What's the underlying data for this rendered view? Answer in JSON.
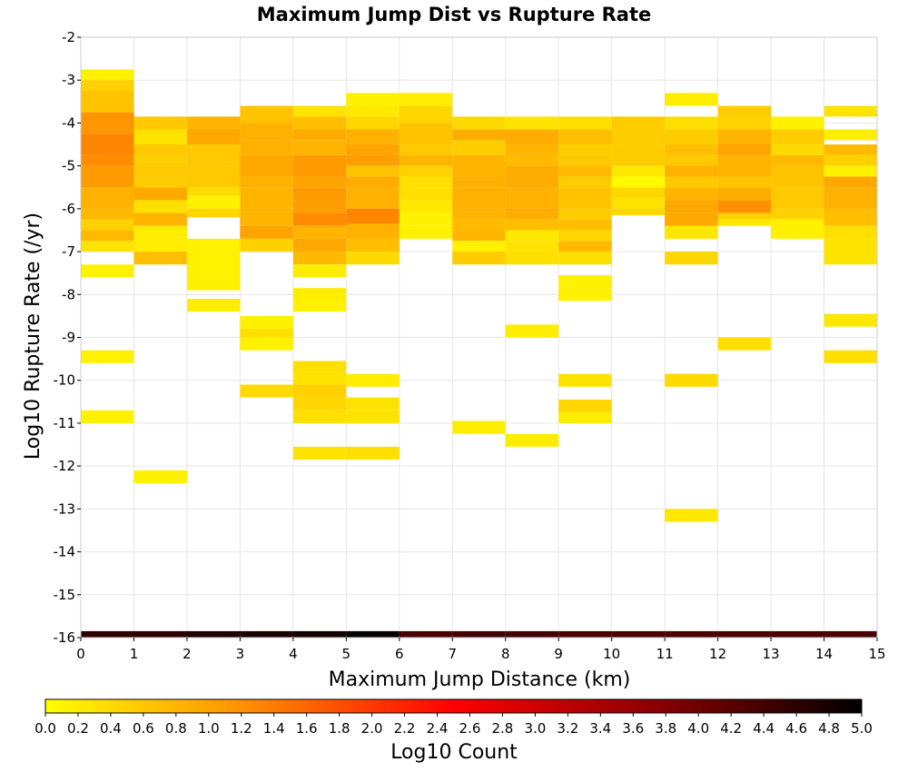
{
  "chart_data": {
    "type": "heatmap",
    "title": "Maximum Jump Dist vs Rupture Rate",
    "xlabel": "Maximum Jump Distance (km)",
    "ylabel": "Log10 Rupture Rate (/yr)",
    "xlim": [
      0,
      15
    ],
    "ylim": [
      -16,
      -2
    ],
    "x_bin_width": 1,
    "y_bin_height": 0.25,
    "xticks": [
      "0",
      "1",
      "2",
      "3",
      "4",
      "5",
      "6",
      "7",
      "8",
      "9",
      "10",
      "11",
      "12",
      "13",
      "14",
      "15"
    ],
    "yticks": [
      "-2",
      "-3",
      "-4",
      "-5",
      "-6",
      "-7",
      "-8",
      "-9",
      "-10",
      "-11",
      "-12",
      "-13",
      "-14",
      "-15",
      "-16"
    ],
    "grid": true,
    "colorbar": {
      "label": "Log10 Count",
      "range": [
        0,
        5
      ],
      "ticks": [
        "0.0",
        "0.2",
        "0.4",
        "0.6",
        "0.8",
        "1.0",
        "1.2",
        "1.4",
        "1.6",
        "1.8",
        "2.0",
        "2.2",
        "2.4",
        "2.6",
        "2.8",
        "3.0",
        "3.2",
        "3.4",
        "3.6",
        "3.8",
        "4.0",
        "4.2",
        "4.4",
        "4.6",
        "4.8",
        "5.0"
      ],
      "stops": [
        "#ffff00",
        "#ff8c00",
        "#ff0000",
        "#8b0000",
        "#000000"
      ]
    },
    "cells_note": "each row: [x_bin_start, y_bin_bottom, y_bin_top, log10_count]",
    "cells": [
      [
        0,
        -3.0,
        -2.75,
        0.15
      ],
      [
        0,
        -3.25,
        -3.0,
        0.5
      ],
      [
        0,
        -3.75,
        -3.25,
        0.65
      ],
      [
        0,
        -4.25,
        -3.75,
        1.15
      ],
      [
        0,
        -4.75,
        -4.25,
        1.3
      ],
      [
        0,
        -5.0,
        -4.75,
        1.25
      ],
      [
        0,
        -5.5,
        -5.0,
        1.1
      ],
      [
        0,
        -6.0,
        -5.5,
        0.85
      ],
      [
        0,
        -6.25,
        -6.0,
        0.75
      ],
      [
        0,
        -6.5,
        -6.25,
        0.5
      ],
      [
        0,
        -6.75,
        -6.5,
        0.75
      ],
      [
        0,
        -7.0,
        -6.75,
        0.3
      ],
      [
        0,
        -7.6,
        -7.3,
        0.15
      ],
      [
        0,
        -9.6,
        -9.3,
        0.15
      ],
      [
        0,
        -11.0,
        -10.7,
        0.15
      ],
      [
        1,
        -4.15,
        -3.85,
        0.6
      ],
      [
        1,
        -4.5,
        -4.15,
        0.3
      ],
      [
        1,
        -4.75,
        -4.5,
        0.6
      ],
      [
        1,
        -5.0,
        -4.75,
        0.55
      ],
      [
        1,
        -5.25,
        -5.0,
        0.6
      ],
      [
        1,
        -5.5,
        -5.25,
        0.55
      ],
      [
        1,
        -5.8,
        -5.5,
        0.95
      ],
      [
        1,
        -6.1,
        -5.8,
        0.35
      ],
      [
        1,
        -6.4,
        -6.1,
        0.8
      ],
      [
        1,
        -6.7,
        -6.4,
        0.2
      ],
      [
        1,
        -7.0,
        -6.7,
        0.2
      ],
      [
        1,
        -7.3,
        -7.0,
        0.7
      ],
      [
        1,
        -12.4,
        -12.1,
        0.15
      ],
      [
        2,
        -4.15,
        -3.85,
        0.8
      ],
      [
        2,
        -4.5,
        -4.15,
        0.95
      ],
      [
        2,
        -5.0,
        -4.5,
        0.6
      ],
      [
        2,
        -5.5,
        -5.0,
        0.6
      ],
      [
        2,
        -5.7,
        -5.5,
        0.4
      ],
      [
        2,
        -6.0,
        -5.7,
        0.15
      ],
      [
        2,
        -6.2,
        -6.0,
        0.45
      ],
      [
        2,
        -7.0,
        -6.7,
        0.15
      ],
      [
        2,
        -7.6,
        -7.0,
        0.15
      ],
      [
        2,
        -7.9,
        -7.6,
        0.15
      ],
      [
        2,
        -8.4,
        -8.1,
        0.2
      ],
      [
        3,
        -4.0,
        -3.6,
        0.65
      ],
      [
        3,
        -4.4,
        -4.0,
        0.85
      ],
      [
        3,
        -4.75,
        -4.4,
        0.85
      ],
      [
        3,
        -5.25,
        -4.75,
        0.95
      ],
      [
        3,
        -5.5,
        -5.25,
        0.85
      ],
      [
        3,
        -6.0,
        -5.5,
        0.8
      ],
      [
        3,
        -6.4,
        -6.0,
        0.8
      ],
      [
        3,
        -6.7,
        -6.4,
        1.0
      ],
      [
        3,
        -7.0,
        -6.7,
        0.5
      ],
      [
        3,
        -8.8,
        -8.5,
        0.15
      ],
      [
        3,
        -9.0,
        -8.8,
        0.35
      ],
      [
        3,
        -9.3,
        -9.0,
        0.15
      ],
      [
        3,
        -10.4,
        -10.1,
        0.4
      ],
      [
        4,
        -3.85,
        -3.6,
        0.3
      ],
      [
        4,
        -4.15,
        -3.85,
        0.7
      ],
      [
        4,
        -4.4,
        -4.15,
        0.9
      ],
      [
        4,
        -4.75,
        -4.4,
        0.8
      ],
      [
        4,
        -5.25,
        -4.75,
        1.1
      ],
      [
        4,
        -5.5,
        -5.25,
        1.0
      ],
      [
        4,
        -5.8,
        -5.5,
        1.1
      ],
      [
        4,
        -6.1,
        -5.8,
        1.05
      ],
      [
        4,
        -6.4,
        -6.1,
        1.25
      ],
      [
        4,
        -6.7,
        -6.4,
        0.8
      ],
      [
        4,
        -7.0,
        -6.7,
        0.95
      ],
      [
        4,
        -7.3,
        -7.0,
        0.75
      ],
      [
        4,
        -7.6,
        -7.3,
        0.2
      ],
      [
        4,
        -8.1,
        -7.85,
        0.2
      ],
      [
        4,
        -8.4,
        -8.1,
        0.15
      ],
      [
        4,
        -9.8,
        -9.55,
        0.35
      ],
      [
        4,
        -10.1,
        -9.8,
        0.3
      ],
      [
        4,
        -10.4,
        -10.1,
        0.5
      ],
      [
        4,
        -10.7,
        -10.4,
        0.45
      ],
      [
        4,
        -11.0,
        -10.7,
        0.35
      ],
      [
        4,
        -11.85,
        -11.55,
        0.3
      ],
      [
        5,
        -3.6,
        -3.3,
        0.15
      ],
      [
        5,
        -3.85,
        -3.6,
        0.25
      ],
      [
        5,
        -4.15,
        -3.85,
        0.45
      ],
      [
        5,
        -4.5,
        -4.15,
        0.85
      ],
      [
        5,
        -4.75,
        -4.5,
        1.0
      ],
      [
        5,
        -5.0,
        -4.75,
        1.05
      ],
      [
        5,
        -5.25,
        -5.0,
        0.65
      ],
      [
        5,
        -5.5,
        -5.25,
        0.9
      ],
      [
        5,
        -6.0,
        -5.5,
        0.85
      ],
      [
        5,
        -6.35,
        -6.0,
        1.3
      ],
      [
        5,
        -6.7,
        -6.35,
        0.85
      ],
      [
        5,
        -7.0,
        -6.7,
        0.7
      ],
      [
        5,
        -7.3,
        -7.0,
        0.4
      ],
      [
        5,
        -10.15,
        -9.85,
        0.2
      ],
      [
        5,
        -10.7,
        -10.4,
        0.3
      ],
      [
        5,
        -11.0,
        -10.7,
        0.3
      ],
      [
        5,
        -11.85,
        -11.55,
        0.35
      ],
      [
        6,
        -3.6,
        -3.3,
        0.2
      ],
      [
        6,
        -4.0,
        -3.6,
        0.45
      ],
      [
        6,
        -4.5,
        -4.0,
        0.65
      ],
      [
        6,
        -4.75,
        -4.5,
        0.6
      ],
      [
        6,
        -5.0,
        -4.75,
        0.8
      ],
      [
        6,
        -5.25,
        -5.0,
        0.5
      ],
      [
        6,
        -5.5,
        -5.25,
        0.35
      ],
      [
        6,
        -5.8,
        -5.5,
        0.35
      ],
      [
        6,
        -6.1,
        -5.8,
        0.25
      ],
      [
        6,
        -6.4,
        -6.1,
        0.15
      ],
      [
        6,
        -6.7,
        -6.4,
        0.15
      ],
      [
        7,
        -4.15,
        -3.85,
        0.4
      ],
      [
        7,
        -4.4,
        -4.15,
        0.9
      ],
      [
        7,
        -4.75,
        -4.4,
        0.55
      ],
      [
        7,
        -5.25,
        -4.75,
        0.8
      ],
      [
        7,
        -5.5,
        -5.25,
        0.85
      ],
      [
        7,
        -6.0,
        -5.5,
        0.85
      ],
      [
        7,
        -6.25,
        -6.0,
        0.8
      ],
      [
        7,
        -6.5,
        -6.25,
        0.75
      ],
      [
        7,
        -6.75,
        -6.5,
        0.8
      ],
      [
        7,
        -7.0,
        -6.75,
        0.15
      ],
      [
        7,
        -7.3,
        -7.0,
        0.55
      ],
      [
        7,
        -11.25,
        -10.95,
        0.2
      ],
      [
        8,
        -4.15,
        -3.85,
        0.3
      ],
      [
        8,
        -4.5,
        -4.15,
        0.9
      ],
      [
        8,
        -4.75,
        -4.5,
        0.8
      ],
      [
        8,
        -5.0,
        -4.75,
        0.75
      ],
      [
        8,
        -5.5,
        -5.0,
        0.9
      ],
      [
        8,
        -6.0,
        -5.5,
        0.85
      ],
      [
        8,
        -6.25,
        -6.0,
        0.9
      ],
      [
        8,
        -6.5,
        -6.25,
        0.7
      ],
      [
        8,
        -6.75,
        -6.5,
        0.25
      ],
      [
        8,
        -7.0,
        -6.75,
        0.3
      ],
      [
        8,
        -7.3,
        -7.0,
        0.35
      ],
      [
        8,
        -9.0,
        -8.7,
        0.2
      ],
      [
        8,
        -11.55,
        -11.25,
        0.2
      ],
      [
        9,
        -4.15,
        -3.85,
        0.35
      ],
      [
        9,
        -4.5,
        -4.15,
        0.7
      ],
      [
        9,
        -4.75,
        -4.5,
        0.55
      ],
      [
        9,
        -5.0,
        -4.75,
        0.6
      ],
      [
        9,
        -5.25,
        -5.0,
        0.75
      ],
      [
        9,
        -5.5,
        -5.25,
        0.55
      ],
      [
        9,
        -6.0,
        -5.5,
        0.65
      ],
      [
        9,
        -6.25,
        -6.0,
        0.55
      ],
      [
        9,
        -6.5,
        -6.25,
        0.7
      ],
      [
        9,
        -6.75,
        -6.5,
        0.45
      ],
      [
        9,
        -7.0,
        -6.75,
        0.75
      ],
      [
        9,
        -7.3,
        -7.0,
        0.35
      ],
      [
        9,
        -7.85,
        -7.55,
        0.15
      ],
      [
        9,
        -8.15,
        -7.85,
        0.15
      ],
      [
        9,
        -10.15,
        -9.85,
        0.3
      ],
      [
        9,
        -10.75,
        -10.45,
        0.45
      ],
      [
        9,
        -11.0,
        -10.75,
        0.2
      ],
      [
        10,
        -4.5,
        -3.85,
        0.55
      ],
      [
        10,
        -5.0,
        -4.5,
        0.55
      ],
      [
        10,
        -5.25,
        -5.0,
        0.25
      ],
      [
        10,
        -5.5,
        -5.25,
        0.05
      ],
      [
        10,
        -5.75,
        -5.5,
        0.45
      ],
      [
        10,
        -6.0,
        -5.75,
        0.3
      ],
      [
        10,
        -6.15,
        -6.0,
        0.45
      ],
      [
        11,
        -3.6,
        -3.3,
        0.2
      ],
      [
        11,
        -4.15,
        -3.85,
        0.35
      ],
      [
        11,
        -4.5,
        -4.15,
        0.55
      ],
      [
        11,
        -4.75,
        -4.5,
        0.7
      ],
      [
        11,
        -5.0,
        -4.75,
        0.6
      ],
      [
        11,
        -5.25,
        -5.0,
        0.85
      ],
      [
        11,
        -5.5,
        -5.25,
        0.6
      ],
      [
        11,
        -5.8,
        -5.5,
        0.8
      ],
      [
        11,
        -6.1,
        -5.8,
        0.95
      ],
      [
        11,
        -6.4,
        -6.1,
        0.95
      ],
      [
        11,
        -6.7,
        -6.4,
        0.25
      ],
      [
        11,
        -7.3,
        -7.0,
        0.45
      ],
      [
        11,
        -10.15,
        -9.85,
        0.4
      ],
      [
        11,
        -13.3,
        -13.0,
        0.25
      ],
      [
        12,
        -3.85,
        -3.6,
        0.55
      ],
      [
        12,
        -4.15,
        -3.85,
        0.5
      ],
      [
        12,
        -4.5,
        -4.15,
        0.8
      ],
      [
        12,
        -4.75,
        -4.5,
        1.0
      ],
      [
        12,
        -5.25,
        -4.75,
        0.8
      ],
      [
        12,
        -5.5,
        -5.25,
        0.65
      ],
      [
        12,
        -5.8,
        -5.5,
        0.9
      ],
      [
        12,
        -6.1,
        -5.8,
        1.2
      ],
      [
        12,
        -6.25,
        -6.1,
        0.5
      ],
      [
        12,
        -6.4,
        -6.25,
        0.25
      ],
      [
        12,
        -9.3,
        -9.0,
        0.35
      ],
      [
        13,
        -4.15,
        -3.85,
        0.15
      ],
      [
        13,
        -4.5,
        -4.15,
        0.55
      ],
      [
        13,
        -4.75,
        -4.5,
        0.4
      ],
      [
        13,
        -5.0,
        -4.75,
        0.75
      ],
      [
        13,
        -5.5,
        -5.0,
        0.65
      ],
      [
        13,
        -6.0,
        -5.5,
        0.6
      ],
      [
        13,
        -6.25,
        -6.0,
        0.5
      ],
      [
        13,
        -6.7,
        -6.25,
        0.15
      ],
      [
        14,
        -3.85,
        -3.6,
        0.3
      ],
      [
        14,
        -4.4,
        -4.15,
        0.2
      ],
      [
        14,
        -4.75,
        -4.5,
        0.75
      ],
      [
        14,
        -5.0,
        -4.75,
        0.5
      ],
      [
        14,
        -5.25,
        -5.0,
        0.15
      ],
      [
        14,
        -5.5,
        -5.25,
        0.95
      ],
      [
        14,
        -6.0,
        -5.5,
        0.85
      ],
      [
        14,
        -6.4,
        -6.0,
        0.7
      ],
      [
        14,
        -6.7,
        -6.4,
        0.35
      ],
      [
        14,
        -7.3,
        -6.7,
        0.3
      ],
      [
        14,
        -8.75,
        -8.45,
        0.25
      ],
      [
        14,
        -9.6,
        -9.3,
        0.35
      ],
      [
        0,
        -16.0,
        -15.85,
        4.6
      ],
      [
        1,
        -16.0,
        -15.85,
        4.6
      ],
      [
        2,
        -16.0,
        -15.85,
        4.7
      ],
      [
        3,
        -16.0,
        -15.85,
        4.75
      ],
      [
        4,
        -16.0,
        -15.85,
        4.85
      ],
      [
        5,
        -16.0,
        -15.85,
        4.95
      ],
      [
        6,
        -16.0,
        -15.85,
        4.35
      ],
      [
        7,
        -16.0,
        -15.85,
        4.4
      ],
      [
        8,
        -16.0,
        -15.85,
        4.4
      ],
      [
        9,
        -16.0,
        -15.85,
        4.35
      ],
      [
        10,
        -16.0,
        -15.85,
        4.35
      ],
      [
        11,
        -16.0,
        -15.85,
        4.35
      ],
      [
        12,
        -16.0,
        -15.85,
        4.35
      ],
      [
        13,
        -16.0,
        -15.85,
        4.35
      ],
      [
        14,
        -16.0,
        -15.85,
        4.35
      ]
    ]
  }
}
